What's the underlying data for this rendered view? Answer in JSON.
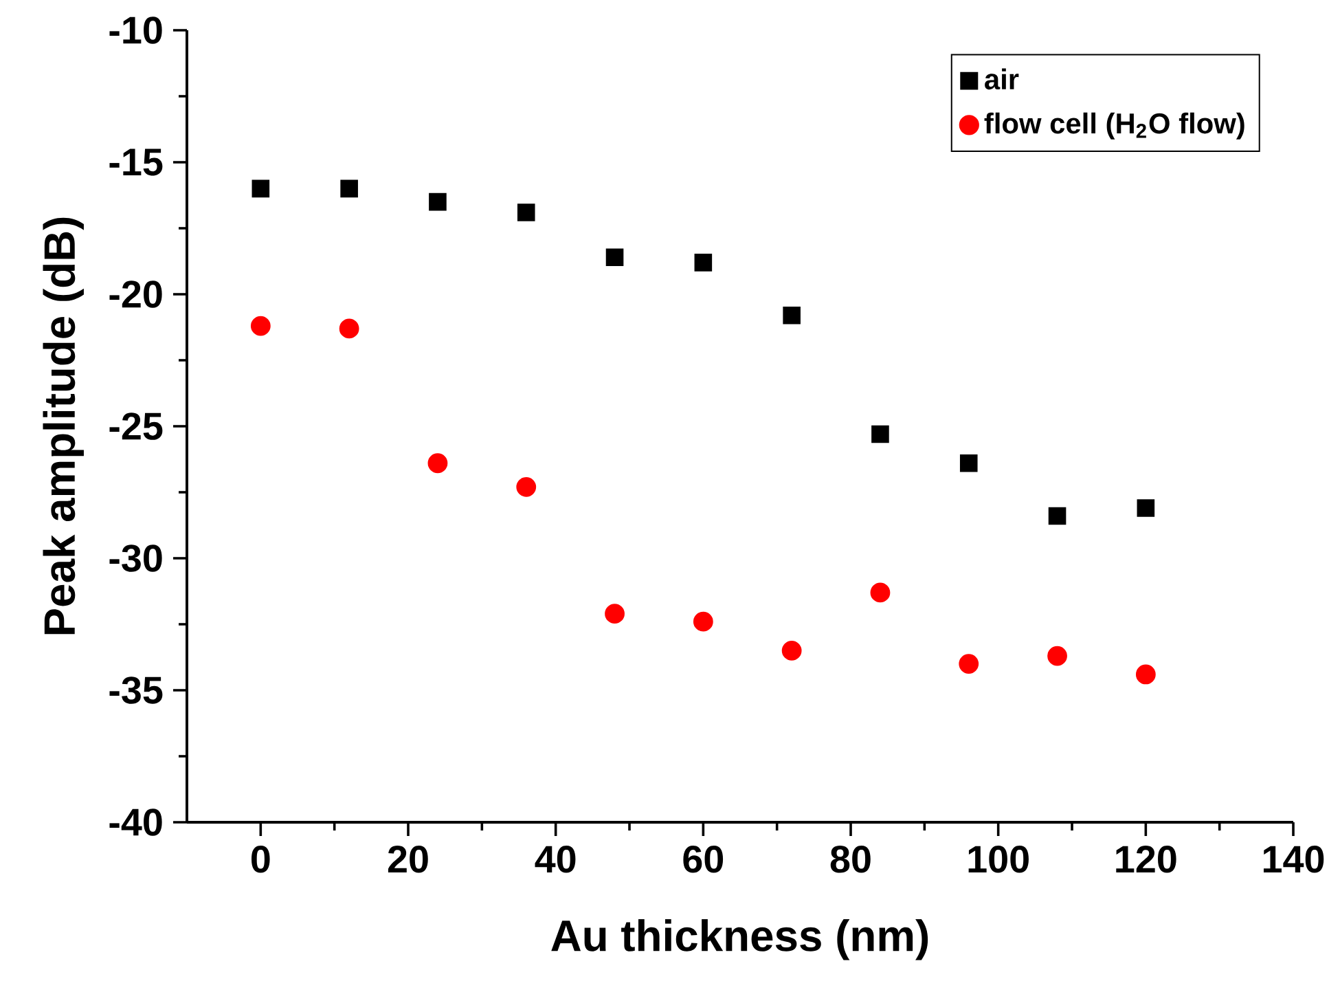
{
  "chart_data": {
    "type": "scatter",
    "xlabel": "Au thickness (nm)",
    "ylabel": "Peak amplitude (dB)",
    "xlim": [
      -10,
      140
    ],
    "ylim": [
      -40,
      -10
    ],
    "xticks": [
      0,
      20,
      40,
      60,
      80,
      100,
      120,
      140
    ],
    "yticks": [
      -40,
      -35,
      -30,
      -25,
      -20,
      -15,
      -10
    ],
    "legend": "top right",
    "grid": false,
    "x": [
      0,
      12,
      24,
      36,
      48,
      60,
      72,
      84,
      96,
      108,
      120
    ],
    "series": [
      {
        "name": "air",
        "color": "#000000",
        "marker": "square",
        "values": [
          -16.0,
          -16.0,
          -16.5,
          -16.9,
          -18.6,
          -18.8,
          -20.8,
          -25.3,
          -26.4,
          -28.4,
          -28.1
        ]
      },
      {
        "name": "flow cell (H$_{2}$O flow)",
        "color": "#ff0000",
        "marker": "circle",
        "values": [
          -21.2,
          -21.3,
          -26.4,
          -27.3,
          -32.1,
          -32.4,
          -33.5,
          -31.3,
          -34.0,
          -33.7,
          -34.4
        ]
      }
    ]
  }
}
